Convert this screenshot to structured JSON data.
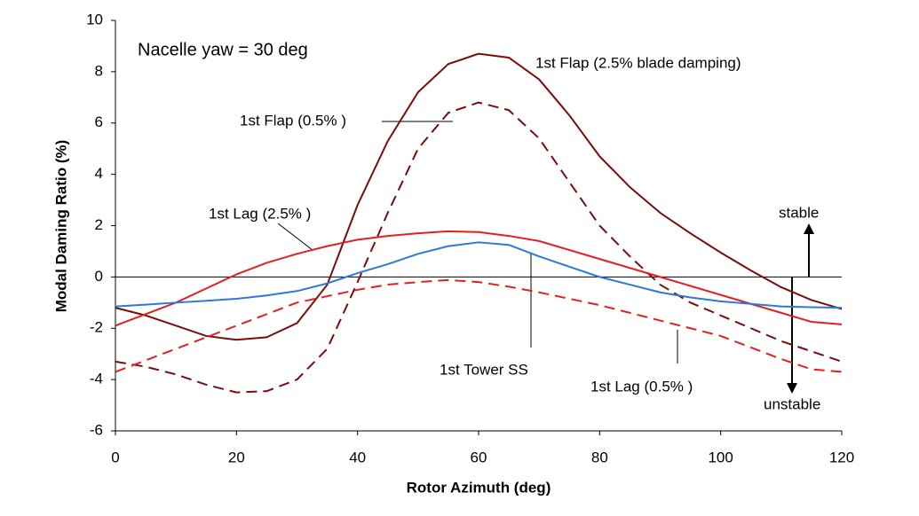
{
  "chart_data": {
    "type": "line",
    "xlabel": "Rotor Azimuth (deg)",
    "ylabel": "Modal Daming Ratio (%)",
    "xlim": [
      0,
      120
    ],
    "xticks": [
      0,
      20,
      40,
      60,
      80,
      100,
      120
    ],
    "ylim": [
      -6,
      10
    ],
    "yticks": [
      -6,
      -4,
      -2,
      0,
      2,
      4,
      6,
      8,
      10
    ],
    "x": [
      0,
      5,
      10,
      15,
      20,
      25,
      30,
      35,
      40,
      45,
      50,
      55,
      60,
      65,
      70,
      75,
      80,
      85,
      90,
      95,
      100,
      105,
      110,
      115,
      120
    ],
    "series": [
      {
        "color": "#7b0c0c",
        "dashed": false,
        "values": [
          -1.2,
          -1.5,
          -1.9,
          -2.3,
          -2.45,
          -2.35,
          -1.8,
          -0.3,
          2.8,
          5.3,
          7.2,
          8.3,
          8.7,
          8.55,
          7.7,
          6.3,
          4.7,
          3.5,
          2.5,
          1.7,
          0.95,
          0.25,
          -0.4,
          -0.9,
          -1.25
        ]
      },
      {
        "color": "#7b0c0c",
        "dashed": true,
        "values": [
          -3.3,
          -3.5,
          -3.8,
          -4.2,
          -4.5,
          -4.45,
          -4.0,
          -2.8,
          -0.2,
          2.5,
          5.0,
          6.4,
          6.8,
          6.5,
          5.4,
          3.7,
          2.0,
          0.8,
          -0.3,
          -1.0,
          -1.5,
          -2.0,
          -2.5,
          -2.9,
          -3.3
        ]
      },
      {
        "color": "#e32020",
        "dashed": false,
        "values": [
          -1.9,
          -1.45,
          -1.0,
          -0.45,
          0.1,
          0.55,
          0.9,
          1.2,
          1.45,
          1.6,
          1.7,
          1.78,
          1.75,
          1.6,
          1.4,
          1.05,
          0.7,
          0.35,
          0.0,
          -0.35,
          -0.7,
          -1.05,
          -1.4,
          -1.75,
          -1.85
        ]
      },
      {
        "color": "#e32020",
        "dashed": true,
        "values": [
          -3.7,
          -3.25,
          -2.8,
          -2.35,
          -1.9,
          -1.45,
          -1.0,
          -0.75,
          -0.5,
          -0.3,
          -0.2,
          -0.12,
          -0.2,
          -0.38,
          -0.6,
          -0.85,
          -1.1,
          -1.4,
          -1.7,
          -2.0,
          -2.3,
          -2.75,
          -3.2,
          -3.6,
          -3.7
        ]
      },
      {
        "color": "#2a7ad8",
        "dashed": false,
        "values": [
          -1.15,
          -1.08,
          -1.0,
          -0.93,
          -0.85,
          -0.72,
          -0.55,
          -0.25,
          0.15,
          0.5,
          0.9,
          1.2,
          1.35,
          1.25,
          0.8,
          0.4,
          0.0,
          -0.3,
          -0.6,
          -0.8,
          -0.95,
          -1.05,
          -1.15,
          -1.18,
          -1.2
        ]
      }
    ],
    "annotations": [
      "Nacelle yaw = 30 deg",
      "1st Flap (2.5% blade damping)",
      "1st Flap (0.5% )",
      "1st Lag (2.5% )",
      "1st Tower SS",
      "1st Lag (0.5% )",
      "stable",
      "unstable"
    ]
  }
}
